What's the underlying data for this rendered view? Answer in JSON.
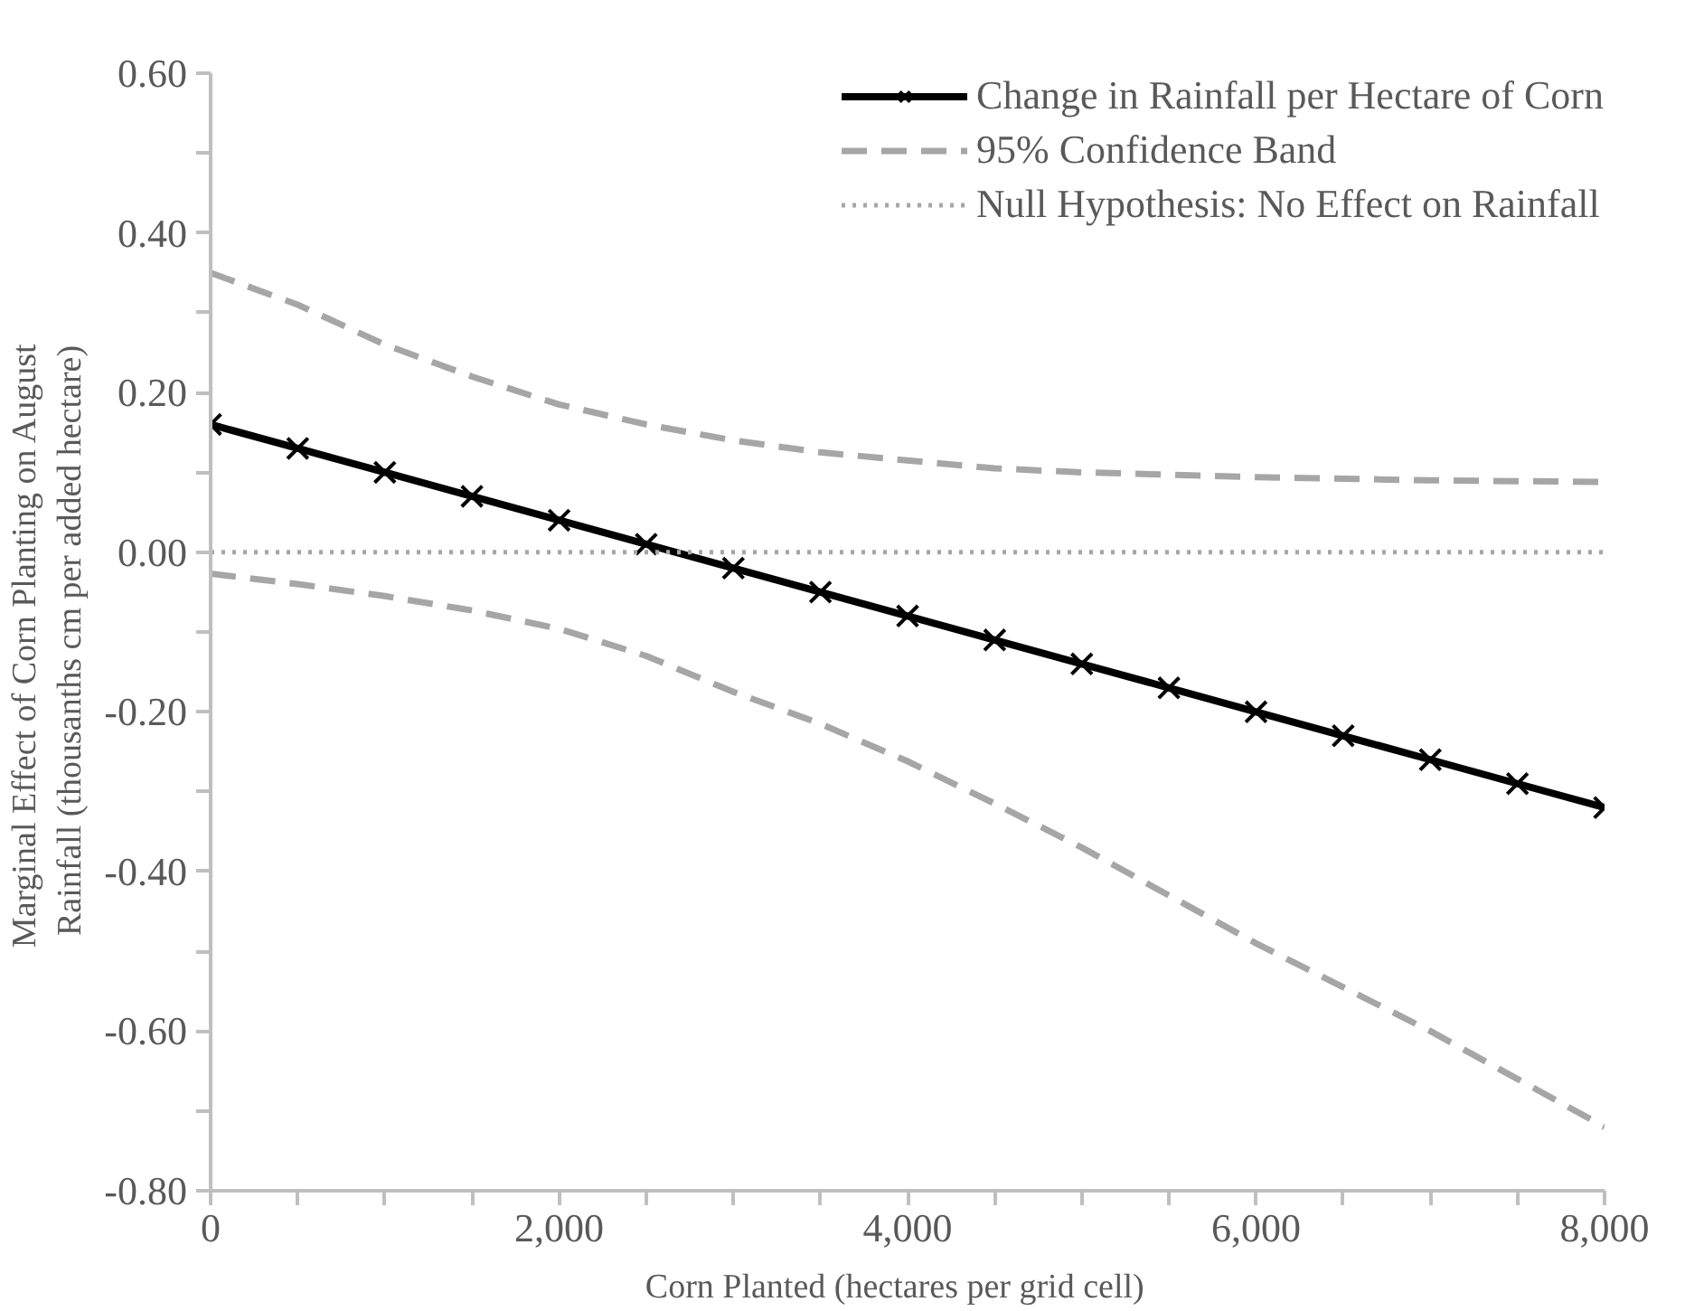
{
  "chart_data": {
    "type": "line",
    "xlabel": "Corn Planted  (hectares  per grid  cell)",
    "ylabel": "Marginal  Effect  of Corn Planting  on August\nRainfall  (thousanths  cm per added hectare)",
    "x": [
      0,
      500,
      1000,
      1500,
      2000,
      2500,
      3000,
      3500,
      4000,
      4500,
      5000,
      5500,
      6000,
      6500,
      7000,
      7500,
      8000
    ],
    "series": [
      {
        "name": "Change in Rainfall per Hectare of Corn",
        "color": "#000000",
        "marker": "cross",
        "line_style": "solid",
        "values": [
          0.16,
          0.13,
          0.1,
          0.07,
          0.04,
          0.01,
          -0.02,
          -0.05,
          -0.08,
          -0.11,
          -0.14,
          -0.17,
          -0.2,
          -0.23,
          -0.26,
          -0.29,
          -0.32
        ]
      },
      {
        "name": "95% Confidence Band",
        "color": "#a6a6a6",
        "marker": "none",
        "line_style": "dashed",
        "values": [
          0.35,
          0.31,
          0.26,
          0.22,
          0.185,
          0.16,
          0.14,
          0.125,
          0.115,
          0.105,
          0.1,
          0.097,
          0.094,
          0.092,
          0.09,
          0.089,
          0.088
        ]
      },
      {
        "color": "#a6a6a6",
        "marker": "none",
        "line_style": "dashed",
        "values": [
          -0.027,
          -0.04,
          -0.055,
          -0.073,
          -0.096,
          -0.13,
          -0.175,
          -0.215,
          -0.262,
          -0.315,
          -0.37,
          -0.43,
          -0.49,
          -0.545,
          -0.6,
          -0.66,
          -0.72
        ]
      }
    ],
    "ref_lines": [
      {
        "axis": "y",
        "value": 0,
        "label": "Null Hypothesis: No Effect on Rainfall",
        "color": "#a6a6a6",
        "line_style": "dotted"
      }
    ],
    "xlim": [
      0,
      8000
    ],
    "ylim": [
      -0.8,
      0.6
    ],
    "xticks": [
      0,
      {
        "value": 500,
        "label": null
      },
      {
        "value": 1000,
        "label": null
      },
      {
        "value": 1500,
        "label": null
      },
      {
        "value": 2000,
        "label": "2,000"
      },
      {
        "value": 2500,
        "label": null
      },
      {
        "value": 3000,
        "label": null
      },
      {
        "value": 3500,
        "label": null
      },
      {
        "value": 4000,
        "label": "4,000"
      },
      {
        "value": 4500,
        "label": null
      },
      {
        "value": 5000,
        "label": null
      },
      {
        "value": 5500,
        "label": null
      },
      {
        "value": 6000,
        "label": "6,000"
      },
      {
        "value": 6500,
        "label": null
      },
      {
        "value": 7000,
        "label": null
      },
      {
        "value": 7500,
        "label": null
      },
      {
        "value": 8000,
        "label": "8,000"
      }
    ],
    "yticks": [
      {
        "value": -0.8,
        "label": "-0.80"
      },
      {
        "value": -0.7,
        "label": null
      },
      {
        "value": -0.6,
        "label": "-0.60"
      },
      {
        "value": -0.5,
        "label": null
      },
      {
        "value": -0.4,
        "label": "-0.40"
      },
      {
        "value": -0.3,
        "label": null
      },
      {
        "value": -0.2,
        "label": "-0.20"
      },
      {
        "value": -0.1,
        "label": null
      },
      {
        "value": 0,
        "label": "0.00"
      },
      {
        "value": 0.1,
        "label": null
      },
      {
        "value": 0.2,
        "label": "0.20"
      },
      {
        "value": 0.3,
        "label": null
      },
      {
        "value": 0.4,
        "label": "0.40"
      },
      {
        "value": 0.5,
        "label": null
      },
      {
        "value": 0.6,
        "label": "0.60"
      }
    ],
    "grid": false,
    "legend": "top right"
  }
}
